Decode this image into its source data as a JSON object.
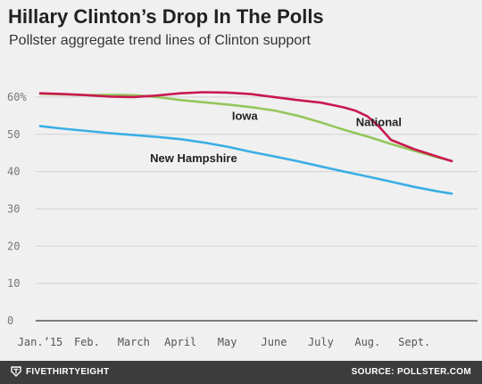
{
  "title": "Hillary Clinton’s Drop In The Polls",
  "subtitle": "Pollster aggregate trend lines of Clinton support",
  "footer": {
    "brand": "FIVETHIRTYEIGHT",
    "source": "SOURCE: POLLSTER.COM"
  },
  "chart_data": {
    "type": "line",
    "ylim": [
      0,
      65
    ],
    "yticks": [
      0,
      10,
      20,
      30,
      40,
      50,
      60
    ],
    "ytick_labels": [
      "0",
      "10",
      "20",
      "30",
      "40",
      "50",
      "60%"
    ],
    "xlim": [
      1,
      9.95
    ],
    "xticks": [
      1,
      2,
      3,
      4,
      5,
      6,
      7,
      8,
      9
    ],
    "xtick_labels": [
      "Jan.’15",
      "Feb.",
      "March",
      "April",
      "May",
      "June",
      "July",
      "Aug.",
      "Sept."
    ],
    "grid": true,
    "colors": {
      "National": "#c8194e",
      "Iowa": "#95c65c",
      "New Hampshire": "#3aaee5"
    },
    "series": [
      {
        "name": "National",
        "color": "#c8194e",
        "label_position": [
          7.75,
          53.2
        ],
        "x": [
          1.0,
          1.5,
          2.0,
          2.5,
          3.0,
          3.5,
          4.0,
          4.5,
          5.0,
          5.5,
          6.0,
          6.5,
          7.0,
          7.5,
          7.75,
          8.0,
          8.25,
          8.5,
          9.0,
          9.5,
          9.8
        ],
        "values": [
          61.0,
          60.8,
          60.5,
          60.1,
          60.0,
          60.4,
          61.0,
          61.3,
          61.2,
          60.8,
          60.0,
          59.2,
          58.5,
          57.2,
          56.3,
          54.8,
          52.0,
          48.5,
          46.0,
          44.0,
          42.8
        ]
      },
      {
        "name": "Iowa",
        "color": "#95c65c",
        "label_position": [
          5.1,
          54.8
        ],
        "x": [
          1.0,
          1.5,
          2.0,
          2.5,
          3.0,
          3.5,
          4.0,
          4.5,
          5.0,
          5.5,
          6.0,
          6.5,
          7.0,
          7.5,
          8.0,
          8.5,
          9.0,
          9.5,
          9.8
        ],
        "values": [
          60.9,
          60.7,
          60.5,
          60.6,
          60.5,
          60.0,
          59.2,
          58.6,
          58.0,
          57.3,
          56.4,
          55.0,
          53.2,
          51.2,
          49.4,
          47.4,
          45.6,
          43.8,
          42.9
        ]
      },
      {
        "name": "New Hampshire",
        "color": "#3aaee5",
        "label_position": [
          3.35,
          43.5
        ],
        "x": [
          1.0,
          1.5,
          2.0,
          2.5,
          3.0,
          3.5,
          4.0,
          4.5,
          5.0,
          5.5,
          6.0,
          6.5,
          7.0,
          7.5,
          8.0,
          8.5,
          9.0,
          9.5,
          9.8
        ],
        "values": [
          52.2,
          51.5,
          50.9,
          50.3,
          49.8,
          49.3,
          48.7,
          47.8,
          46.7,
          45.3,
          44.1,
          42.8,
          41.4,
          40.0,
          38.7,
          37.3,
          35.9,
          34.7,
          34.1
        ]
      }
    ]
  }
}
